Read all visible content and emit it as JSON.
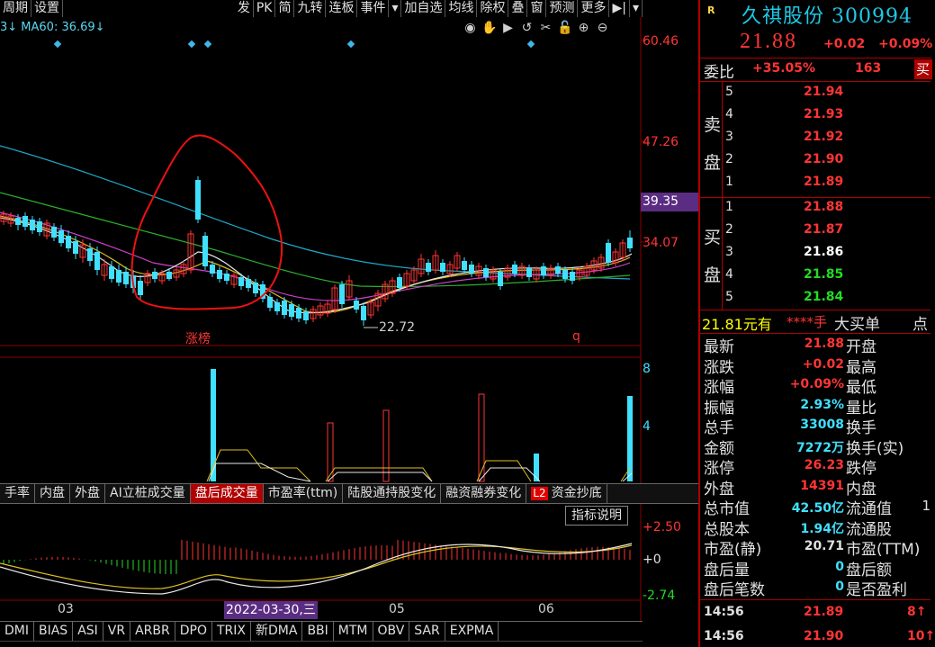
{
  "toolbar": {
    "left": [
      "周期",
      "设置"
    ],
    "right": [
      "发",
      "PK",
      "简",
      "九转",
      "连板",
      "事件",
      "▾",
      "加自选",
      "均线",
      "除权",
      "叠",
      "窗",
      "预测",
      "更多",
      "▶|",
      "▾"
    ]
  },
  "ma_line": "3↓  MA60: 36.69↓",
  "chart_tools": [
    "◉",
    "✋",
    "▶",
    "↺",
    "✂",
    "🔓",
    "⊕",
    "⊖"
  ],
  "price_axis": [
    "60.46",
    "47.26",
    "39.35",
    "34.07"
  ],
  "price_highlight": "39.35",
  "low_label": "22.72",
  "annotation_zhangbang": "涨榜",
  "annotation_q": "q",
  "vol_axis": [
    "8",
    "4"
  ],
  "indicator_tabs": [
    "手率",
    "内盘",
    "外盘",
    "AI立桩成交量",
    "盘后成交量",
    "市盈率(ttm)",
    "陆股通持股变化",
    "融资融券变化",
    "资金抄底"
  ],
  "indicator_tabs_active": "盘后成交量",
  "indicator_l2": "L2",
  "indicator_desc": "指标说明",
  "macd_axis": [
    "+2.50",
    "+0",
    "-2.74"
  ],
  "date_axis": [
    "03",
    "05",
    "06"
  ],
  "date_highlight": "2022-03-30,三",
  "bottom_tabs": [
    "DMI",
    "BIAS",
    "ASI",
    "VR",
    "ARBR",
    "DPO",
    "TRIX",
    "新DMA",
    "BBI",
    "MTM",
    "OBV",
    "SAR",
    "EXPMA"
  ],
  "stock": {
    "badge": "R",
    "name": "久祺股份 300994",
    "price": "21.88",
    "change": "+0.02",
    "pct": "+0.09%"
  },
  "weibi": {
    "label": "委比",
    "value": "+35.05%",
    "diff": "163",
    "tail": "买"
  },
  "sell_side": "卖盘",
  "buy_side": "买盘",
  "sell_orders": [
    {
      "lvl": "5",
      "px": "21.94",
      "color": "#ff3535"
    },
    {
      "lvl": "4",
      "px": "21.93",
      "color": "#ff3535"
    },
    {
      "lvl": "3",
      "px": "21.92",
      "color": "#ff3535"
    },
    {
      "lvl": "2",
      "px": "21.90",
      "color": "#ff3535"
    },
    {
      "lvl": "1",
      "px": "21.89",
      "color": "#ff3535"
    }
  ],
  "buy_orders": [
    {
      "lvl": "1",
      "px": "21.88",
      "color": "#ff3535"
    },
    {
      "lvl": "2",
      "px": "21.87",
      "color": "#ff3535"
    },
    {
      "lvl": "3",
      "px": "21.86",
      "color": "#ffffff"
    },
    {
      "lvl": "4",
      "px": "21.85",
      "color": "#22dd22"
    },
    {
      "lvl": "5",
      "px": "21.84",
      "color": "#22dd22"
    }
  ],
  "big_order": {
    "price": "21.81元有",
    "stars": "****手",
    "label": "大买单",
    "tail": "点"
  },
  "quotes": [
    {
      "l": "最新",
      "v": "21.88",
      "vc": "#ff3535",
      "r": "开盘",
      "r2": ""
    },
    {
      "l": "涨跌",
      "v": "+0.02",
      "vc": "#ff3535",
      "r": "最高",
      "r2": ""
    },
    {
      "l": "涨幅",
      "v": "+0.09%",
      "vc": "#ff3535",
      "r": "最低",
      "r2": ""
    },
    {
      "l": "振幅",
      "v": "2.93%",
      "vc": "#40e0ff",
      "r": "量比",
      "r2": ""
    },
    {
      "l": "总手",
      "v": "33008",
      "vc": "#40e0ff",
      "r": "换手",
      "r2": ""
    },
    {
      "l": "金额",
      "v": "7272万",
      "vc": "#40e0ff",
      "r": "换手(实)",
      "r2": ""
    },
    {
      "l": "涨停",
      "v": "26.23",
      "vc": "#ff3535",
      "r": "跌停",
      "r2": ""
    },
    {
      "l": "外盘",
      "v": "14391",
      "vc": "#ff3535",
      "r": "内盘",
      "r2": ""
    },
    {
      "l": "总市值",
      "v": "42.50亿",
      "vc": "#40e0ff",
      "r": "流通值",
      "r2": "1"
    },
    {
      "l": "总股本",
      "v": "1.94亿",
      "vc": "#40e0ff",
      "r": "流通股",
      "r2": ""
    },
    {
      "l": "市盈(静)",
      "v": "20.71",
      "vc": "#e0e0e0",
      "r": "市盈(TTM)",
      "r2": ""
    },
    {
      "l": "盘后量",
      "v": "0",
      "vc": "#40e0ff",
      "r": "盘后额",
      "r2": ""
    },
    {
      "l": "盘后笔数",
      "v": "0",
      "vc": "#40e0ff",
      "r": "是否盈利",
      "r2": ""
    }
  ],
  "ticks": [
    {
      "time": "14:56",
      "px": "21.89",
      "vol": "8↑"
    },
    {
      "time": "14:56",
      "px": "21.90",
      "vol": "10↑"
    }
  ],
  "chart_data": {
    "type": "candlestick",
    "y_axis_ticks": [
      60.46,
      47.26,
      39.35,
      34.07
    ],
    "low_label": 22.72,
    "ma_label": "MA60: 36.69"
  },
  "colors": {
    "up": "#ff3535",
    "down": "#40e0ff",
    "accent_border": "#b00000"
  }
}
